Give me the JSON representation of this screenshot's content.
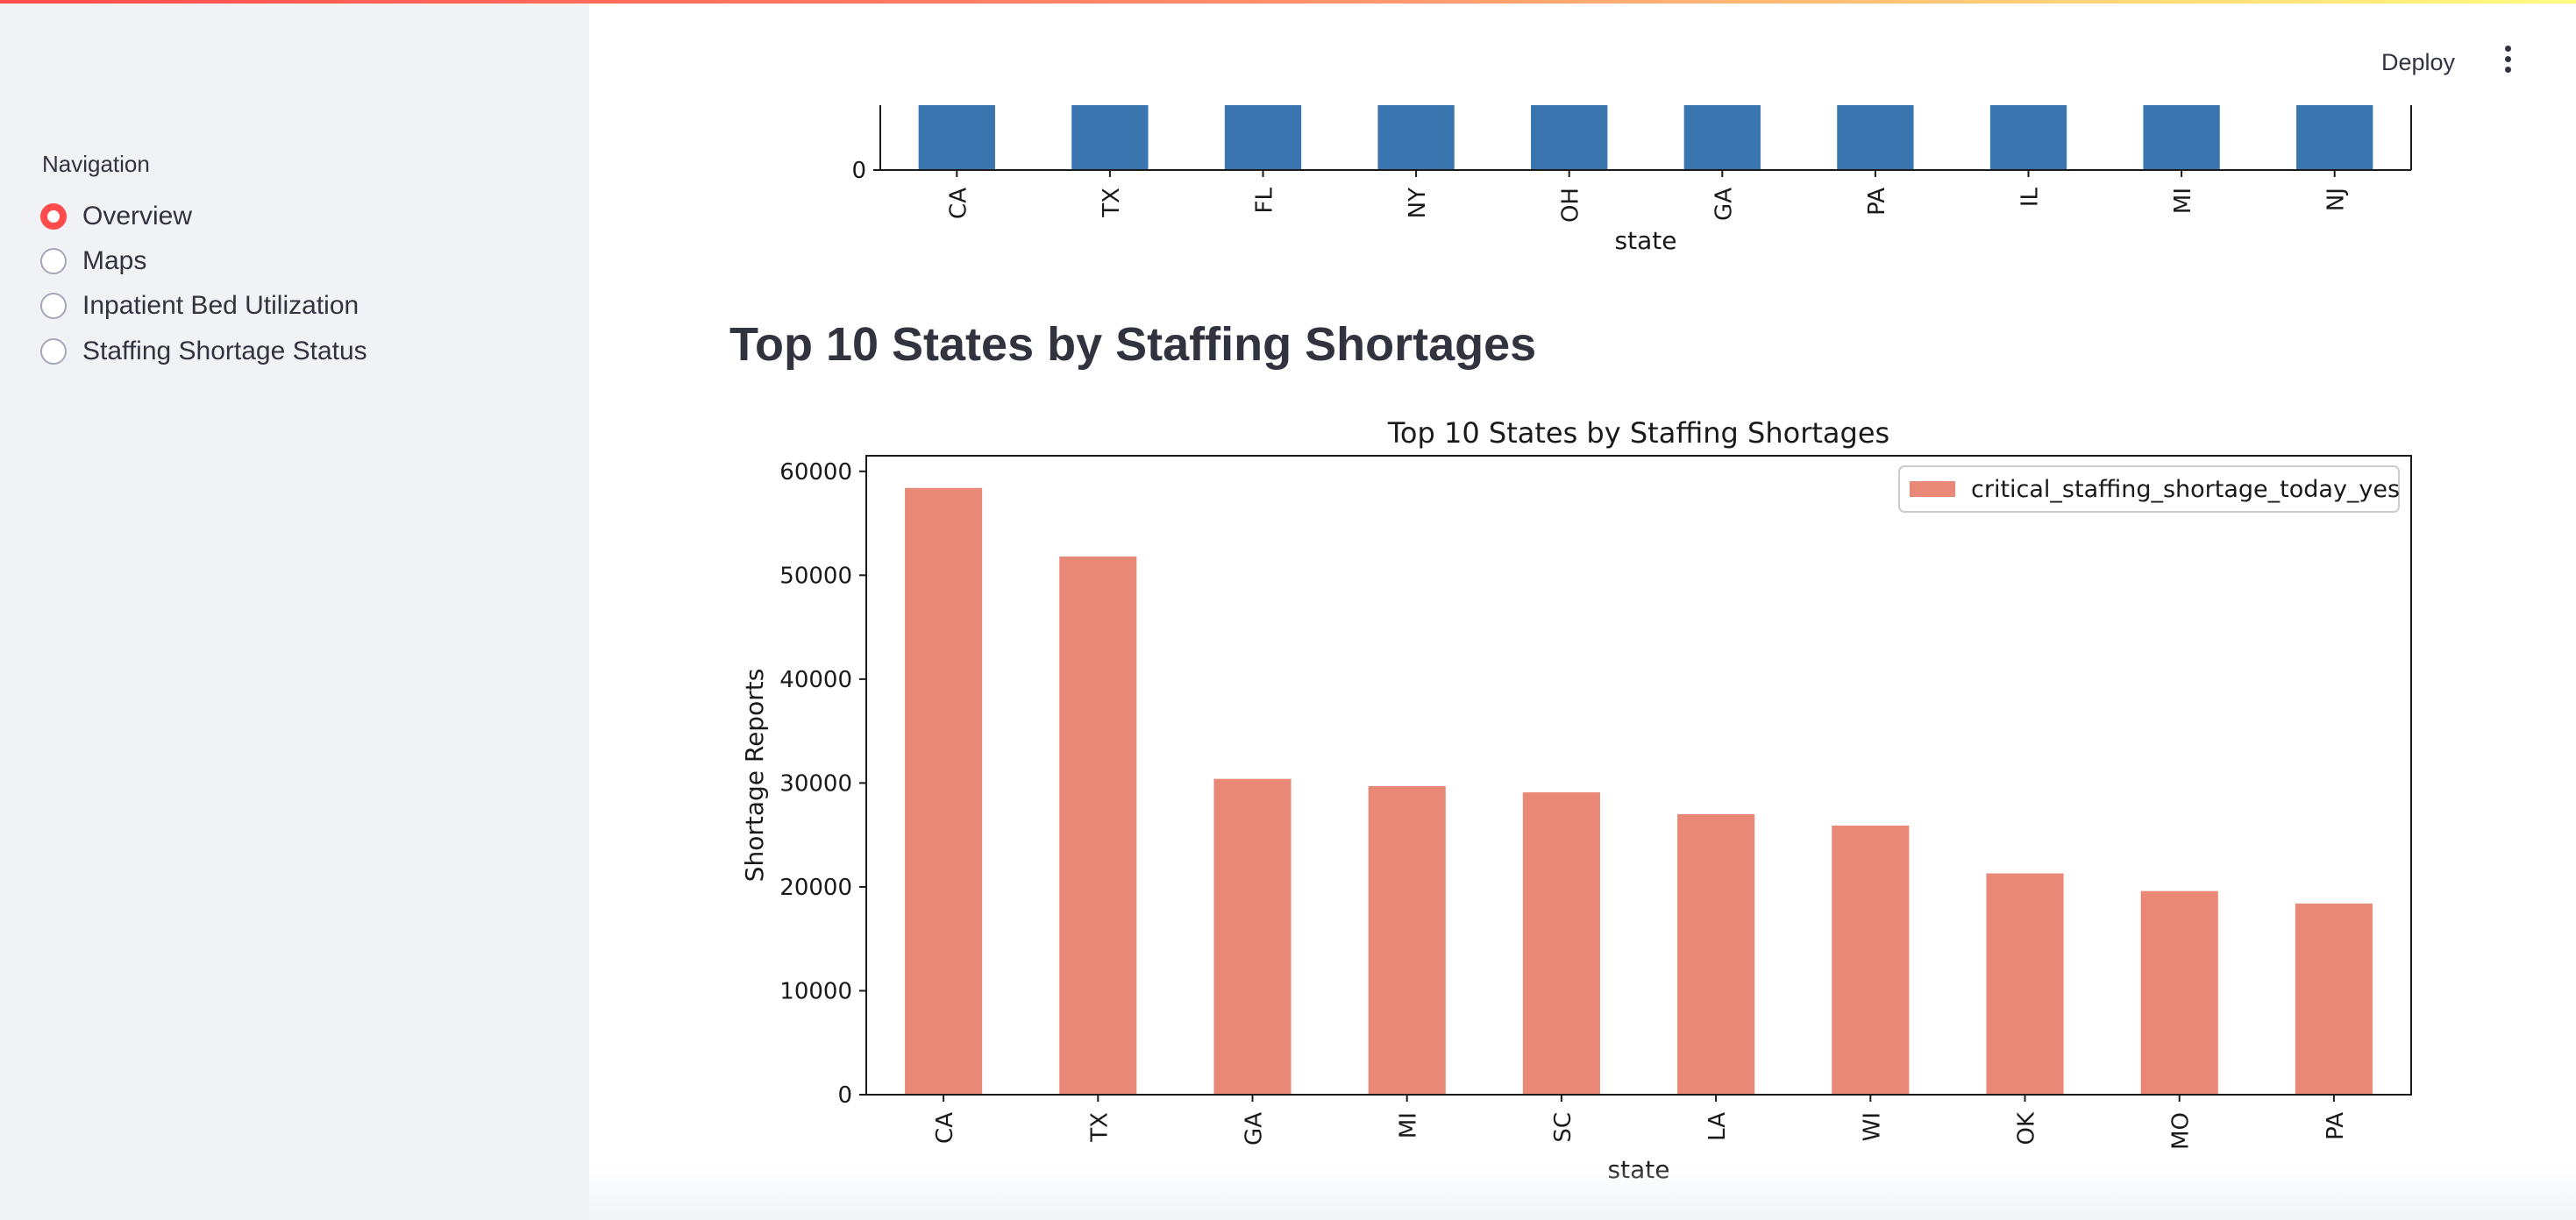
{
  "sidebar": {
    "title": "Navigation",
    "options": [
      {
        "label": "Overview",
        "selected": true
      },
      {
        "label": "Maps",
        "selected": false
      },
      {
        "label": "Inpatient Bed Utilization",
        "selected": false
      },
      {
        "label": "Staffing Shortage Status",
        "selected": false
      }
    ]
  },
  "header": {
    "deploy_label": "Deploy",
    "menu_icon": "kebab-menu-icon"
  },
  "colors": {
    "accent": "#ff4b4b",
    "chart1_bar": "#3a75af",
    "chart2_bar": "#ea8877"
  },
  "main": {
    "section_title": "Top 10 States by Staffing Shortages"
  },
  "chart_data": [
    {
      "type": "bar",
      "partially_visible": true,
      "categories": [
        "CA",
        "TX",
        "FL",
        "NY",
        "OH",
        "GA",
        "PA",
        "IL",
        "MI",
        "NJ"
      ],
      "xlabel": "state",
      "ytick_visible": [
        "0"
      ]
    },
    {
      "type": "bar",
      "title": "Top 10 States by Staffing Shortages",
      "xlabel": "state",
      "ylabel": "Shortage Reports",
      "ylim": [
        0,
        61500
      ],
      "yticks": [
        0,
        10000,
        20000,
        30000,
        40000,
        50000,
        60000
      ],
      "categories": [
        "CA",
        "TX",
        "GA",
        "MI",
        "SC",
        "LA",
        "WI",
        "OK",
        "MO",
        "PA"
      ],
      "series": [
        {
          "name": "critical_staffing_shortage_today_yes",
          "values": [
            58400,
            51800,
            30400,
            29700,
            29100,
            27000,
            25900,
            21300,
            19600,
            18400
          ]
        }
      ],
      "legend": "top-right",
      "grid": false
    }
  ]
}
